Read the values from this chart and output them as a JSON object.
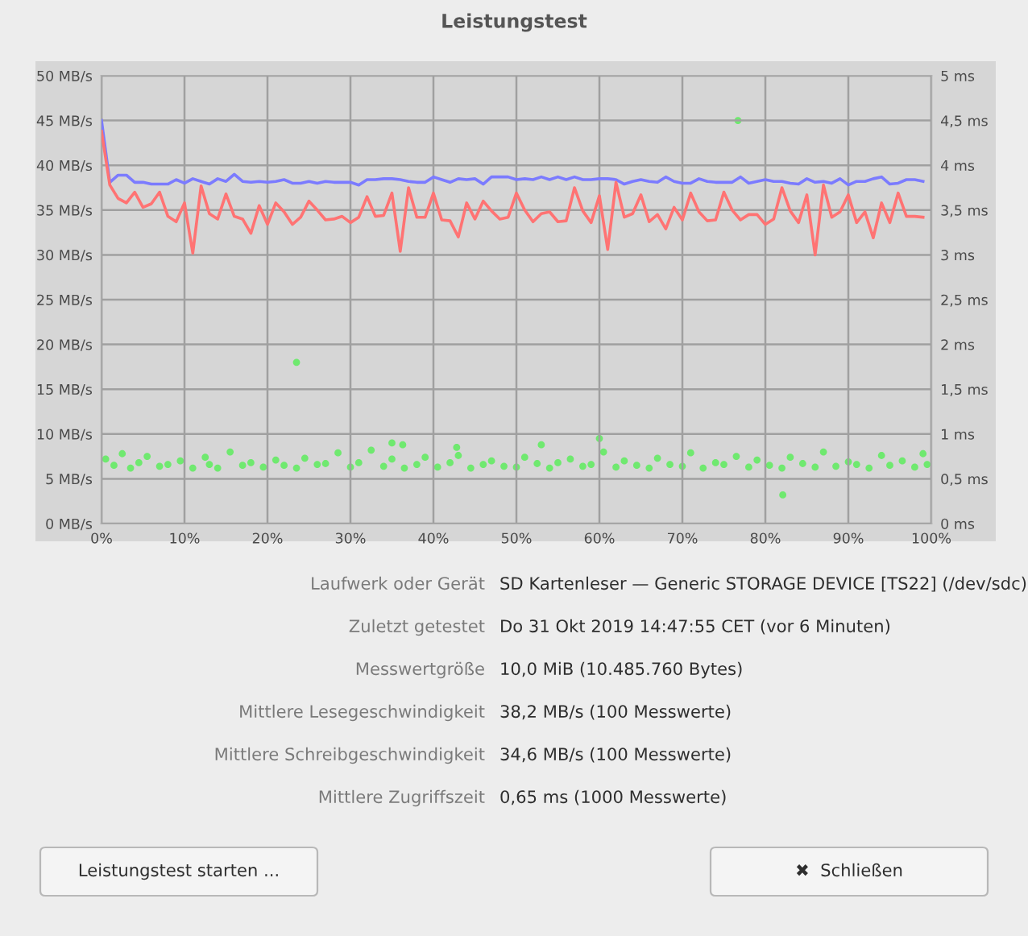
{
  "chart_data": [
    {
      "type": "line",
      "title": "Leistungstest",
      "grid": true,
      "x": [
        0,
        1,
        2,
        3,
        4,
        5,
        6,
        7,
        8,
        9,
        10,
        11,
        12,
        13,
        14,
        15,
        16,
        17,
        18,
        19,
        20,
        21,
        22,
        23,
        24,
        25,
        26,
        27,
        28,
        29,
        30,
        31,
        32,
        33,
        34,
        35,
        36,
        37,
        38,
        39,
        40,
        41,
        42,
        43,
        44,
        45,
        46,
        47,
        48,
        49,
        50,
        51,
        52,
        53,
        54,
        55,
        56,
        57,
        58,
        59,
        60,
        61,
        62,
        63,
        64,
        65,
        66,
        67,
        68,
        69,
        70,
        71,
        72,
        73,
        74,
        75,
        76,
        77,
        78,
        79,
        80,
        81,
        82,
        83,
        84,
        85,
        86,
        87,
        88,
        89,
        90,
        91,
        92,
        93,
        94,
        95,
        96,
        97,
        98,
        99
      ],
      "xlim": [
        0,
        100
      ],
      "xticks": [
        {
          "value": 0,
          "label": "0%"
        },
        {
          "value": 10,
          "label": "10%"
        },
        {
          "value": 20,
          "label": "20%"
        },
        {
          "value": 30,
          "label": "30%"
        },
        {
          "value": 40,
          "label": "40%"
        },
        {
          "value": 50,
          "label": "50%"
        },
        {
          "value": 60,
          "label": "60%"
        },
        {
          "value": 70,
          "label": "70%"
        },
        {
          "value": 80,
          "label": "80%"
        },
        {
          "value": 90,
          "label": "90%"
        },
        {
          "value": 100,
          "label": "100%"
        }
      ],
      "ylim": [
        0,
        50
      ],
      "yticks": [
        {
          "value": 0,
          "label": "0 MB/s"
        },
        {
          "value": 5,
          "label": "5 MB/s"
        },
        {
          "value": 10,
          "label": "10 MB/s"
        },
        {
          "value": 15,
          "label": "15 MB/s"
        },
        {
          "value": 20,
          "label": "20 MB/s"
        },
        {
          "value": 25,
          "label": "25 MB/s"
        },
        {
          "value": 30,
          "label": "30 MB/s"
        },
        {
          "value": 35,
          "label": "35 MB/s"
        },
        {
          "value": 40,
          "label": "40 MB/s"
        },
        {
          "value": 45,
          "label": "45 MB/s"
        },
        {
          "value": 50,
          "label": "50 MB/s"
        }
      ],
      "y2lim": [
        0,
        5
      ],
      "y2ticks": [
        {
          "value": 0,
          "label": "0 ms"
        },
        {
          "value": 0.5,
          "label": "0,5 ms"
        },
        {
          "value": 1,
          "label": "1 ms"
        },
        {
          "value": 1.5,
          "label": "1,5 ms"
        },
        {
          "value": 2,
          "label": "2 ms"
        },
        {
          "value": 2.5,
          "label": "2,5 ms"
        },
        {
          "value": 3,
          "label": "3 ms"
        },
        {
          "value": 3.5,
          "label": "3,5 ms"
        },
        {
          "value": 4,
          "label": "4 ms"
        },
        {
          "value": 4.5,
          "label": "4,5 ms"
        },
        {
          "value": 5,
          "label": "5 ms"
        }
      ],
      "series": [
        {
          "type": "line",
          "color": "#7b7bff",
          "values": [
            45.0,
            38.1,
            38.9,
            38.9,
            38.1,
            38.1,
            37.9,
            37.9,
            37.9,
            38.4,
            38.0,
            38.5,
            38.2,
            37.9,
            38.5,
            38.2,
            39.0,
            38.2,
            38.1,
            38.2,
            38.1,
            38.2,
            38.4,
            38.0,
            38.0,
            38.2,
            38.0,
            38.2,
            38.1,
            38.1,
            38.1,
            37.8,
            38.4,
            38.4,
            38.5,
            38.5,
            38.4,
            38.2,
            38.1,
            38.1,
            38.7,
            38.4,
            38.1,
            38.5,
            38.4,
            38.5,
            37.9,
            38.7,
            38.7,
            38.7,
            38.4,
            38.5,
            38.4,
            38.7,
            38.4,
            38.7,
            38.4,
            38.7,
            38.4,
            38.4,
            38.5,
            38.5,
            38.4,
            37.9,
            38.2,
            38.4,
            38.2,
            38.1,
            38.7,
            38.2,
            38.0,
            38.0,
            38.5,
            38.2,
            38.1,
            38.1,
            38.1,
            38.7,
            38.0,
            38.2,
            38.4,
            38.2,
            38.2,
            38.0,
            37.9,
            38.5,
            38.1,
            38.2,
            38.0,
            38.5,
            37.8,
            38.2,
            38.2,
            38.5,
            38.7,
            37.9,
            38.0,
            38.4,
            38.4,
            38.2
          ]
        },
        {
          "type": "line",
          "color": "#ff7373",
          "values": [
            43.8,
            37.8,
            36.3,
            35.8,
            37.0,
            35.3,
            35.7,
            37.0,
            34.3,
            33.7,
            35.8,
            30.2,
            37.7,
            34.6,
            34.0,
            36.8,
            34.3,
            34.0,
            32.4,
            35.5,
            33.4,
            35.8,
            34.8,
            33.4,
            34.2,
            36.0,
            35.0,
            33.9,
            34.0,
            34.3,
            33.6,
            34.2,
            36.5,
            34.3,
            34.4,
            36.9,
            30.4,
            37.5,
            34.2,
            34.2,
            36.9,
            33.9,
            33.8,
            32.0,
            35.8,
            34.0,
            36.0,
            34.9,
            34.0,
            34.2,
            36.9,
            35.0,
            33.7,
            34.6,
            34.8,
            33.7,
            33.8,
            37.5,
            34.9,
            33.6,
            36.6,
            30.6,
            38.1,
            34.2,
            34.6,
            36.7,
            33.7,
            34.5,
            32.9,
            35.3,
            33.9,
            36.9,
            34.8,
            33.8,
            33.9,
            37.0,
            35.0,
            33.9,
            34.5,
            34.5,
            33.4,
            34.0,
            37.5,
            34.9,
            33.6,
            36.7,
            30.0,
            37.8,
            34.2,
            34.8,
            36.7,
            33.6,
            34.8,
            31.9,
            35.8,
            33.6,
            36.9,
            34.3,
            34.3,
            34.2
          ]
        },
        {
          "type": "scatter",
          "axis": "y2",
          "color": "#55ee55",
          "marker": "circle",
          "x": [
            0.5,
            1.5,
            2.5,
            3.5,
            4.5,
            5.5,
            7,
            8,
            9.5,
            11,
            12.5,
            13,
            14,
            15.5,
            17,
            18,
            19.5,
            21,
            22,
            23.5,
            24.5,
            26,
            27,
            28.5,
            30,
            31,
            32.5,
            34,
            35,
            36.5,
            38,
            39,
            40.5,
            42,
            43,
            44.5,
            46,
            47,
            48.5,
            50,
            51,
            52.5,
            54,
            55,
            56.5,
            58,
            59,
            60.5,
            62,
            63,
            64.5,
            66,
            67,
            68.5,
            70,
            71,
            72.5,
            74,
            75,
            76.5,
            78,
            79,
            80.5,
            82,
            83,
            84.5,
            86,
            87,
            88.5,
            90,
            91,
            92.5,
            94,
            95,
            96.5,
            98,
            99,
            99.5,
            23.5,
            76.7,
            82.1,
            35.0,
            36.3,
            42.8,
            60.0,
            53.0
          ],
          "values": [
            0.72,
            0.65,
            0.78,
            0.62,
            0.68,
            0.75,
            0.64,
            0.66,
            0.7,
            0.62,
            0.74,
            0.66,
            0.62,
            0.8,
            0.65,
            0.68,
            0.63,
            0.71,
            0.65,
            0.62,
            0.73,
            0.66,
            0.67,
            0.79,
            0.63,
            0.68,
            0.82,
            0.64,
            0.72,
            0.62,
            0.66,
            0.74,
            0.63,
            0.68,
            0.76,
            0.62,
            0.66,
            0.7,
            0.64,
            0.63,
            0.74,
            0.67,
            0.62,
            0.68,
            0.72,
            0.64,
            0.66,
            0.8,
            0.63,
            0.7,
            0.65,
            0.62,
            0.73,
            0.66,
            0.64,
            0.79,
            0.62,
            0.68,
            0.66,
            0.75,
            0.63,
            0.71,
            0.65,
            0.62,
            0.74,
            0.67,
            0.63,
            0.8,
            0.64,
            0.69,
            0.66,
            0.62,
            0.76,
            0.65,
            0.7,
            0.63,
            0.78,
            0.66,
            1.8,
            4.5,
            0.32,
            0.9,
            0.88,
            0.85,
            0.95,
            0.88
          ]
        }
      ]
    },
    {
      "type": "other",
      "categories": [
        "Laufwerk oder Gerät",
        "Zuletzt getestet",
        "Messwertgröße",
        "Mittlere Lesegeschwindigkeit",
        "Mittlere Schreibgeschwindigkeit",
        "Mittlere Zugriffszeit"
      ],
      "value_labels": [
        "SD Kartenleser — Generic STORAGE DEVICE [TS22] (/dev/sdc)",
        "Do 31 Okt 2019 14:47:55 CET (vor 6 Minuten)",
        "10,0 MiB (10.485.760 Bytes)",
        "38,2 MB/s (100 Messwerte)",
        "34,6 MB/s (100 Messwerte)",
        "0,65 ms (1000 Messwerte)"
      ],
      "annotations": [
        "Leistungstest starten ...",
        "✖  Schließen"
      ]
    }
  ]
}
